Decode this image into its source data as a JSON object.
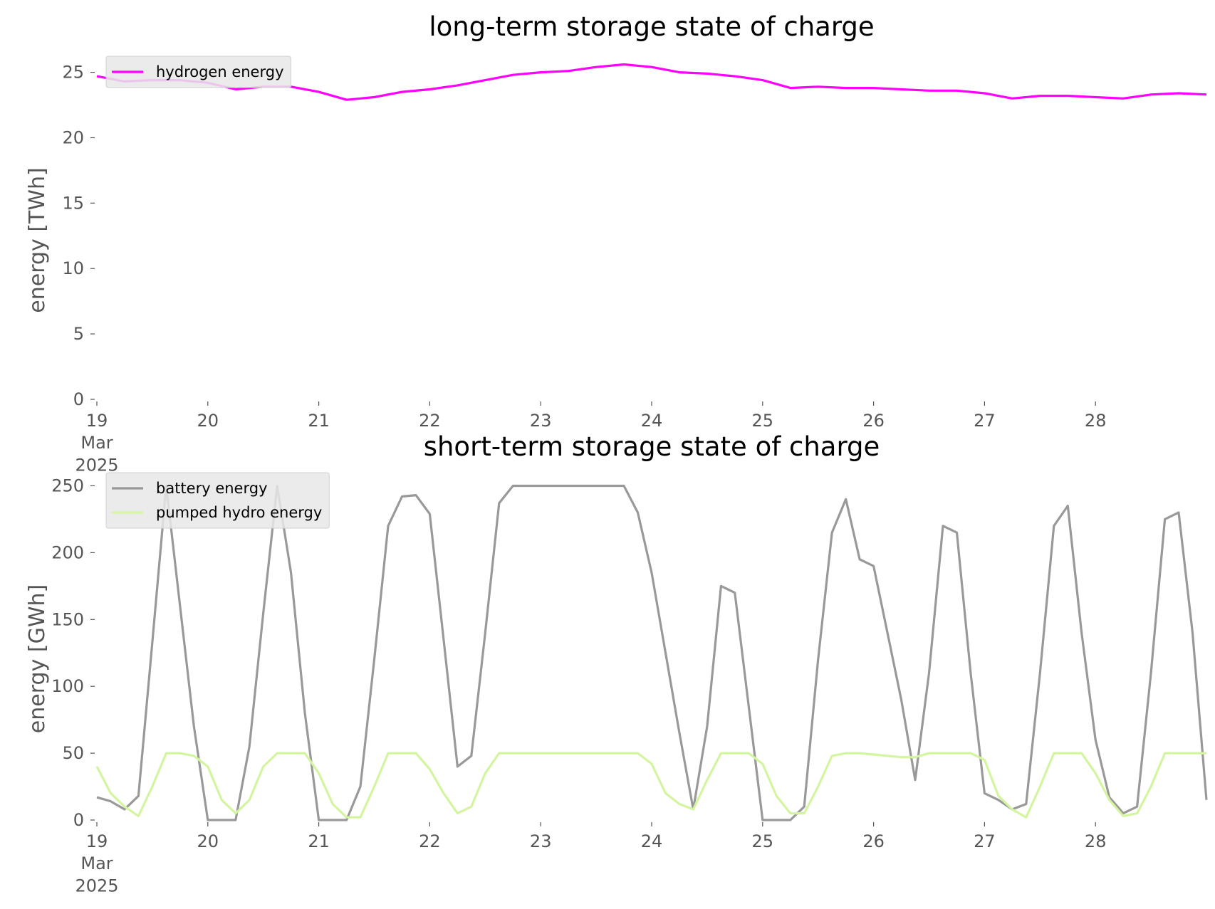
{
  "chart_data": [
    {
      "type": "line",
      "title": "long-term storage state of charge",
      "y_label": "energy [TWh]",
      "x": [
        19,
        19.25,
        19.5,
        19.75,
        20,
        20.25,
        20.5,
        20.75,
        21,
        21.25,
        21.5,
        21.75,
        22,
        22.25,
        22.5,
        22.75,
        23,
        23.25,
        23.5,
        23.75,
        24,
        24.25,
        24.5,
        24.75,
        25,
        25.25,
        25.5,
        25.75,
        26,
        26.25,
        26.5,
        26.75,
        27,
        27.25,
        27.5,
        27.75,
        28,
        28.25,
        28.5,
        28.75,
        29
      ],
      "series": [
        {
          "name": "hydrogen energy",
          "color": "#ff00ff",
          "values": [
            24.7,
            24.3,
            24.4,
            24.4,
            24.2,
            23.7,
            23.9,
            23.9,
            23.5,
            22.9,
            23.1,
            23.5,
            23.7,
            24.0,
            24.4,
            24.8,
            25.0,
            25.1,
            25.4,
            25.6,
            25.4,
            25.0,
            24.9,
            24.7,
            24.4,
            23.8,
            23.9,
            23.8,
            23.8,
            23.7,
            23.6,
            23.6,
            23.4,
            23.0,
            23.2,
            23.2,
            23.1,
            23.0,
            23.3,
            23.4,
            23.3
          ]
        }
      ],
      "xlim": [
        19,
        29
      ],
      "xticks": [
        {
          "value": 19,
          "label": "19\nMar\n2025"
        },
        20,
        21,
        22,
        23,
        24,
        25,
        26,
        27,
        28
      ],
      "ylim": [
        0,
        26.5
      ],
      "yticks": [
        0,
        5,
        10,
        15,
        20,
        25
      ],
      "legend": "upper left",
      "grid": false
    },
    {
      "type": "line",
      "title": "short-term storage state of charge",
      "y_label": "energy [GWh]",
      "x": [
        19,
        19.125,
        19.25,
        19.375,
        19.5,
        19.625,
        19.75,
        19.875,
        20,
        20.125,
        20.25,
        20.375,
        20.5,
        20.625,
        20.75,
        20.875,
        21,
        21.125,
        21.25,
        21.375,
        21.5,
        21.625,
        21.75,
        21.875,
        22,
        22.125,
        22.25,
        22.375,
        22.5,
        22.625,
        22.75,
        22.875,
        23,
        23.125,
        23.25,
        23.375,
        23.5,
        23.625,
        23.75,
        23.875,
        24,
        24.125,
        24.25,
        24.375,
        24.5,
        24.625,
        24.75,
        24.875,
        25,
        25.125,
        25.25,
        25.375,
        25.5,
        25.625,
        25.75,
        25.875,
        26,
        26.125,
        26.25,
        26.375,
        26.5,
        26.625,
        26.75,
        26.875,
        27,
        27.125,
        27.25,
        27.375,
        27.5,
        27.625,
        27.75,
        27.875,
        28,
        28.125,
        28.25,
        28.375,
        28.5,
        28.625,
        28.75,
        28.875,
        29
      ],
      "series": [
        {
          "name": "battery energy",
          "color": "#999999",
          "values": [
            17,
            14,
            8,
            18,
            133,
            250,
            160,
            70,
            0,
            0,
            0,
            55,
            155,
            250,
            185,
            80,
            0,
            0,
            0,
            25,
            120,
            220,
            242,
            243,
            229,
            135,
            40,
            48,
            140,
            237,
            250,
            250,
            250,
            250,
            250,
            250,
            250,
            250,
            250,
            230,
            185,
            125,
            65,
            8,
            70,
            175,
            170,
            85,
            0,
            0,
            0,
            10,
            120,
            215,
            240,
            195,
            190,
            140,
            90,
            30,
            110,
            220,
            215,
            110,
            20,
            15,
            8,
            12,
            110,
            220,
            235,
            140,
            60,
            17,
            5,
            10,
            110,
            225,
            230,
            140,
            15
          ]
        },
        {
          "name": "pumped hydro energy",
          "color": "#d4f5a0",
          "values": [
            40,
            20,
            10,
            3,
            25,
            50,
            50,
            48,
            40,
            15,
            5,
            15,
            40,
            50,
            50,
            50,
            35,
            12,
            2,
            2,
            25,
            50,
            50,
            50,
            38,
            20,
            5,
            10,
            35,
            50,
            50,
            50,
            50,
            50,
            50,
            50,
            50,
            50,
            50,
            50,
            42,
            20,
            12,
            8,
            30,
            50,
            50,
            50,
            42,
            18,
            5,
            5,
            25,
            48,
            50,
            50,
            49,
            48,
            47,
            47,
            50,
            50,
            50,
            50,
            45,
            18,
            8,
            2,
            25,
            50,
            50,
            50,
            35,
            15,
            3,
            5,
            25,
            50,
            50,
            50,
            50
          ]
        }
      ],
      "xlim": [
        19,
        29
      ],
      "xticks": [
        {
          "value": 19,
          "label": "19\nMar\n2025"
        },
        20,
        21,
        22,
        23,
        24,
        25,
        26,
        27,
        28
      ],
      "ylim": [
        0,
        262.5
      ],
      "yticks": [
        0,
        50,
        100,
        150,
        200,
        250
      ],
      "legend": "upper left",
      "grid": false
    }
  ]
}
